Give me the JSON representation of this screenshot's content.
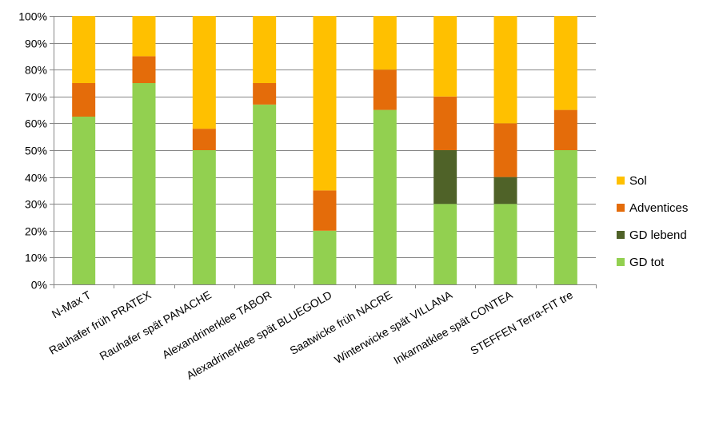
{
  "chart_data": {
    "type": "bar",
    "stacked": "percent",
    "title": "",
    "xlabel": "",
    "ylabel": "",
    "ylim": [
      0,
      100
    ],
    "y_ticks": [
      "0%",
      "10%",
      "20%",
      "30%",
      "40%",
      "50%",
      "60%",
      "70%",
      "80%",
      "90%",
      "100%"
    ],
    "grid": "horizontal",
    "legend_position": "right",
    "categories": [
      "N-Max T",
      "Rauhafer früh PRATEX",
      "Rauhafer spät PANACHE",
      "Alexandrinerklee TABOR",
      "Alexadrinerklee spät BLUEGOLD",
      "Saatwicke früh NACRE",
      "Winterwicke spät VILLANA",
      "Inkarnatklee spät CONTEA",
      "STEFFEN Terra-FIT tre"
    ],
    "series": [
      {
        "name": "GD tot",
        "color": "#92D050",
        "values": [
          62.5,
          75,
          50,
          67,
          20,
          65,
          30,
          30,
          50
        ]
      },
      {
        "name": "GD lebend",
        "color": "#4F6228",
        "values": [
          0,
          0,
          0,
          0,
          0,
          0,
          20,
          10,
          0
        ]
      },
      {
        "name": "Adventices",
        "color": "#E46C0A",
        "values": [
          12.5,
          10,
          8,
          8,
          15,
          15,
          20,
          20,
          15
        ]
      },
      {
        "name": "Sol",
        "color": "#FFC000",
        "values": [
          25,
          15,
          42,
          25,
          65,
          20,
          30,
          40,
          35
        ]
      }
    ],
    "legend_order": [
      "Sol",
      "Adventices",
      "GD lebend",
      "GD tot"
    ]
  }
}
